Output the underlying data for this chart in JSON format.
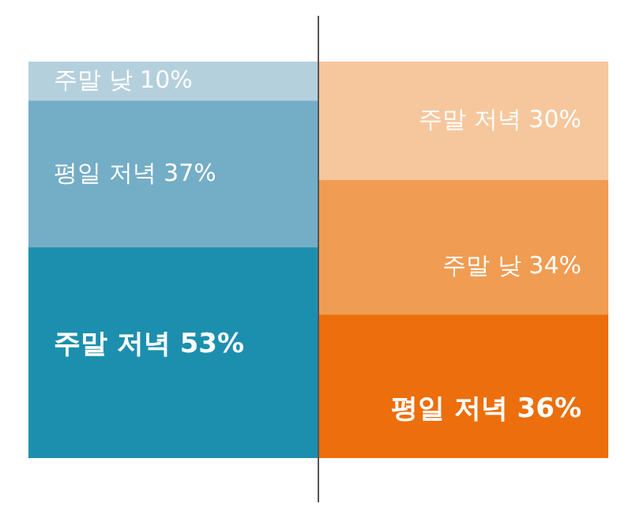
{
  "chart_data": {
    "type": "bar",
    "stacked": true,
    "categories": [
      null,
      null
    ],
    "ylim": [
      0,
      100
    ],
    "tick_labels": false,
    "legend": false,
    "series": [
      {
        "colors": [
          "#1c8fae",
          "#ec6e0c"
        ],
        "values": [
          53,
          36
        ],
        "value_labels": [
          "주말 저녁 53%",
          "평일 저녁 36%"
        ]
      },
      {
        "colors": [
          "#74adc6",
          "#f09c52"
        ],
        "values": [
          37,
          34
        ],
        "value_labels": [
          "평일 저녁 37%",
          "주말 낮 34%"
        ]
      },
      {
        "colors": [
          "#b5d0dd",
          "#f6c79d"
        ],
        "values": [
          10,
          30
        ],
        "value_labels": [
          "주말 낮 10%",
          "주말 저녁 30%"
        ]
      }
    ]
  }
}
